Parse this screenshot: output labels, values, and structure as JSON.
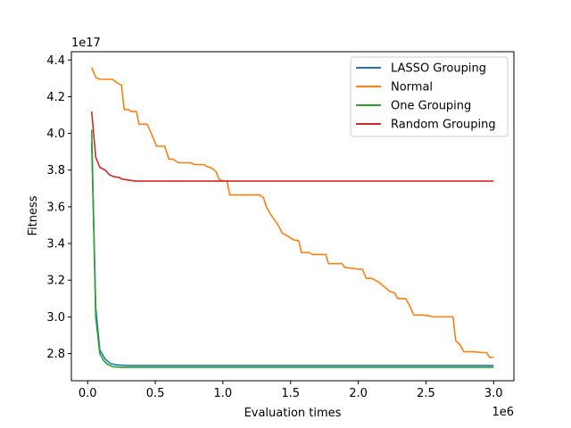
{
  "chart_data": {
    "type": "line",
    "title": "",
    "xlabel": "Evaluation times",
    "ylabel": "Fitness",
    "x_offset_label": "1e6",
    "y_offset_label": "1e17",
    "x_scale": 1000000,
    "y_scale": 1e+17,
    "xlim": [
      -120000,
      3150000
    ],
    "ylim": [
      2.652e+17,
      4.445e+17
    ],
    "xticks": [
      0,
      500000,
      1000000,
      1500000,
      2000000,
      2500000,
      3000000
    ],
    "xtick_labels": [
      "0.0",
      "0.5",
      "1.0",
      "1.5",
      "2.0",
      "2.5",
      "3.0"
    ],
    "yticks": [
      2.8e+17,
      3e+17,
      3.2e+17,
      3.4e+17,
      3.6e+17,
      3.8e+17,
      4e+17,
      4.2e+17,
      4.4e+17
    ],
    "ytick_labels": [
      "2.8",
      "3.0",
      "3.2",
      "3.4",
      "3.6",
      "3.8",
      "4.0",
      "4.2",
      "4.4"
    ],
    "grid": false,
    "legend_position": "top-right",
    "series": [
      {
        "name": "LASSO Grouping",
        "color": "#1f77b4",
        "points": [
          [
            30000,
            3.95e+17
          ],
          [
            60000,
            3.05e+17
          ],
          [
            90000,
            2.82e+17
          ],
          [
            130000,
            2.77e+17
          ],
          [
            170000,
            2.745e+17
          ],
          [
            220000,
            2.738e+17
          ],
          [
            300000,
            2.735e+17
          ],
          [
            600000,
            2.735e+17
          ],
          [
            1000000,
            2.735e+17
          ],
          [
            2000000,
            2.735e+17
          ],
          [
            3000000,
            2.735e+17
          ]
        ]
      },
      {
        "name": "Normal",
        "color": "#ff7f0e",
        "points": [
          [
            30000,
            4.36e+17
          ],
          [
            60000,
            4.305e+17
          ],
          [
            90000,
            4.295e+17
          ],
          [
            120000,
            4.295e+17
          ],
          [
            180000,
            4.295e+17
          ],
          [
            200000,
            4.285e+17
          ],
          [
            230000,
            4.27e+17
          ],
          [
            250000,
            4.265e+17
          ],
          [
            270000,
            4.13e+17
          ],
          [
            300000,
            4.13e+17
          ],
          [
            320000,
            4.12e+17
          ],
          [
            360000,
            4.12e+17
          ],
          [
            380000,
            4.05e+17
          ],
          [
            440000,
            4.05e+17
          ],
          [
            470000,
            4e+17
          ],
          [
            510000,
            3.93e+17
          ],
          [
            570000,
            3.93e+17
          ],
          [
            600000,
            3.86e+17
          ],
          [
            630000,
            3.86e+17
          ],
          [
            670000,
            3.84e+17
          ],
          [
            760000,
            3.84e+17
          ],
          [
            790000,
            3.83e+17
          ],
          [
            860000,
            3.83e+17
          ],
          [
            880000,
            3.82e+17
          ],
          [
            920000,
            3.81e+17
          ],
          [
            950000,
            3.79e+17
          ],
          [
            970000,
            3.75e+17
          ],
          [
            1000000,
            3.74e+17
          ],
          [
            1030000,
            3.74e+17
          ],
          [
            1050000,
            3.665e+17
          ],
          [
            1270000,
            3.665e+17
          ],
          [
            1300000,
            3.65e+17
          ],
          [
            1320000,
            3.6e+17
          ],
          [
            1360000,
            3.55e+17
          ],
          [
            1400000,
            3.51e+17
          ],
          [
            1440000,
            3.455e+17
          ],
          [
            1480000,
            3.44e+17
          ],
          [
            1520000,
            3.42e+17
          ],
          [
            1560000,
            3.415e+17
          ],
          [
            1580000,
            3.35e+17
          ],
          [
            1640000,
            3.35e+17
          ],
          [
            1660000,
            3.34e+17
          ],
          [
            1760000,
            3.34e+17
          ],
          [
            1780000,
            3.29e+17
          ],
          [
            1880000,
            3.29e+17
          ],
          [
            1900000,
            3.27e+17
          ],
          [
            2000000,
            3.26e+17
          ],
          [
            2030000,
            3.26e+17
          ],
          [
            2060000,
            3.21e+17
          ],
          [
            2100000,
            3.21e+17
          ],
          [
            2150000,
            3.19e+17
          ],
          [
            2200000,
            3.16e+17
          ],
          [
            2230000,
            3.14e+17
          ],
          [
            2270000,
            3.13e+17
          ],
          [
            2290000,
            3.1e+17
          ],
          [
            2350000,
            3.1e+17
          ],
          [
            2380000,
            3.06e+17
          ],
          [
            2410000,
            3.01e+17
          ],
          [
            2470000,
            3.01e+17
          ],
          [
            2530000,
            3.005e+17
          ],
          [
            2550000,
            3e+17
          ],
          [
            2620000,
            3e+17
          ],
          [
            2650000,
            3e+17
          ],
          [
            2700000,
            3e+17
          ],
          [
            2720000,
            2.87e+17
          ],
          [
            2750000,
            2.85e+17
          ],
          [
            2780000,
            2.81e+17
          ],
          [
            2850000,
            2.81e+17
          ],
          [
            2920000,
            2.805e+17
          ],
          [
            2950000,
            2.805e+17
          ],
          [
            2970000,
            2.78e+17
          ],
          [
            3000000,
            2.78e+17
          ]
        ]
      },
      {
        "name": "One Grouping",
        "color": "#2ca02c",
        "points": [
          [
            30000,
            4.02e+17
          ],
          [
            60000,
            3e+17
          ],
          [
            90000,
            2.8e+17
          ],
          [
            120000,
            2.76e+17
          ],
          [
            150000,
            2.74e+17
          ],
          [
            190000,
            2.728e+17
          ],
          [
            250000,
            2.725e+17
          ],
          [
            400000,
            2.725e+17
          ],
          [
            1000000,
            2.725e+17
          ],
          [
            2000000,
            2.725e+17
          ],
          [
            3000000,
            2.725e+17
          ]
        ]
      },
      {
        "name": "Random Grouping",
        "color": "#d62728",
        "points": [
          [
            30000,
            4.12e+17
          ],
          [
            60000,
            3.87e+17
          ],
          [
            90000,
            3.815e+17
          ],
          [
            130000,
            3.8e+17
          ],
          [
            160000,
            3.775e+17
          ],
          [
            190000,
            3.765e+17
          ],
          [
            230000,
            3.76e+17
          ],
          [
            260000,
            3.75e+17
          ],
          [
            310000,
            3.745e+17
          ],
          [
            350000,
            3.74e+17
          ],
          [
            500000,
            3.74e+17
          ],
          [
            1000000,
            3.74e+17
          ],
          [
            2000000,
            3.74e+17
          ],
          [
            3000000,
            3.74e+17
          ]
        ]
      }
    ]
  }
}
